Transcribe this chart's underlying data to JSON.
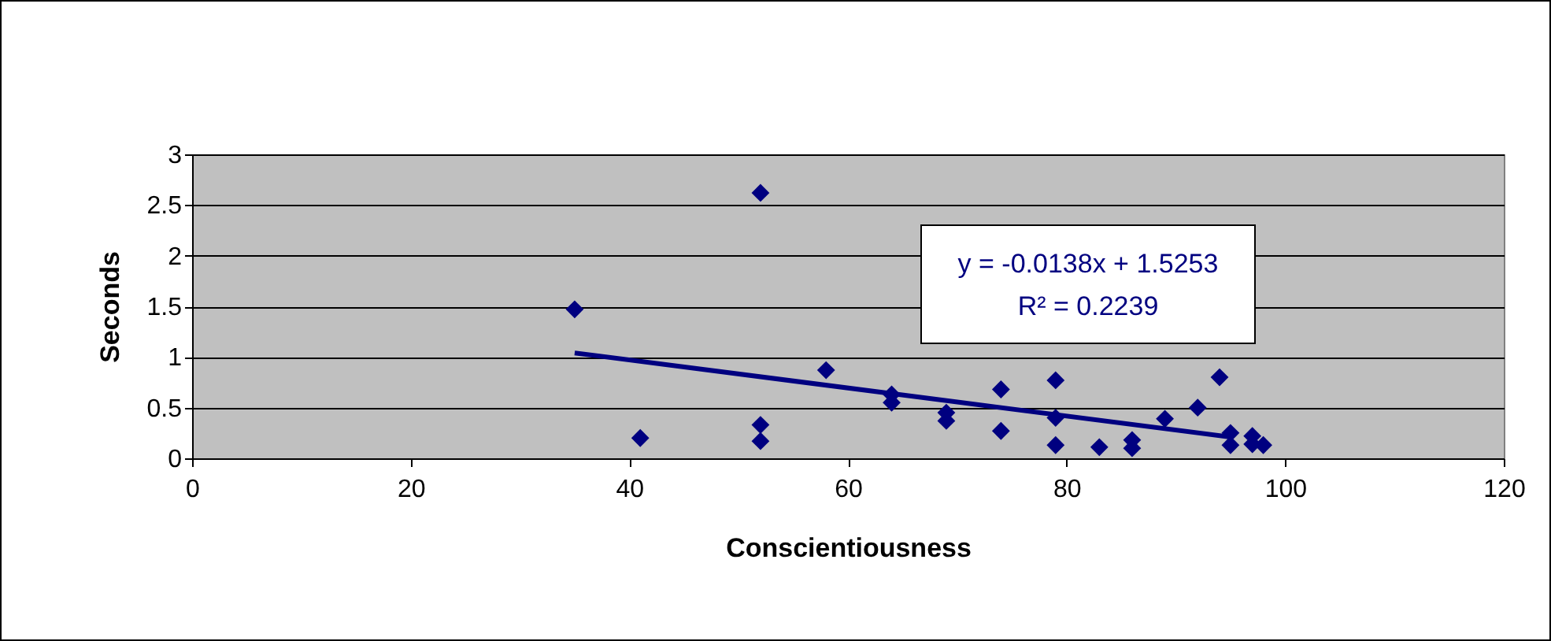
{
  "chart_data": {
    "type": "scatter",
    "xlabel": "Conscientiousness",
    "ylabel": "Seconds",
    "xlim": [
      0,
      120
    ],
    "xticks": [
      0,
      20,
      40,
      60,
      80,
      100,
      120
    ],
    "ylim": [
      0,
      3
    ],
    "yticks": [
      0,
      0.5,
      1,
      1.5,
      2,
      2.5,
      3
    ],
    "grid": "y",
    "marker": "diamond",
    "series": [
      {
        "color": "#000080",
        "x": [
          35,
          41,
          52,
          52,
          52,
          58,
          64,
          64,
          69,
          69,
          74,
          74,
          79,
          79,
          79,
          83,
          86,
          86,
          89,
          92,
          94,
          95,
          95,
          97,
          97,
          98
        ],
        "values": [
          1.47,
          0.2,
          2.62,
          0.33,
          0.17,
          0.87,
          0.63,
          0.55,
          0.45,
          0.37,
          0.68,
          0.27,
          0.77,
          0.4,
          0.13,
          0.11,
          0.18,
          0.1,
          0.39,
          0.5,
          0.8,
          0.25,
          0.13,
          0.22,
          0.14,
          0.13
        ]
      },
      {
        "type": "line",
        "marker": "none",
        "color": "#000080",
        "x": [
          35,
          95
        ],
        "values": [
          1.04,
          0.21
        ]
      }
    ],
    "annotations": [
      "y = -0.0138x + 1.5253",
      "R² = 0.2239"
    ]
  }
}
